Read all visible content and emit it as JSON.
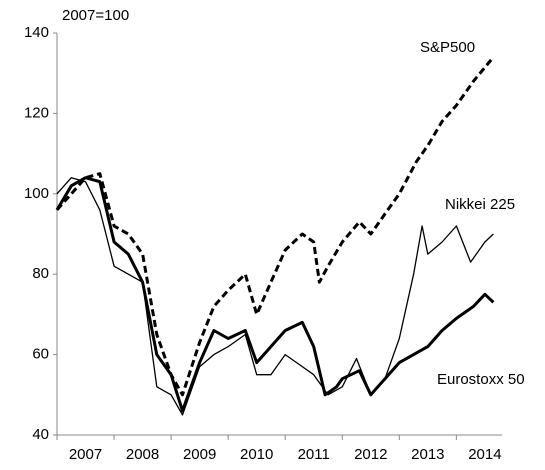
{
  "chart_data": {
    "type": "line",
    "y_label": "2007=100",
    "xlim": [
      2007,
      2014.8
    ],
    "xticks": [
      2007,
      2008,
      2009,
      2010,
      2011,
      2012,
      2013,
      2014
    ],
    "ylim": [
      40,
      140
    ],
    "yticks": [
      40,
      60,
      80,
      100,
      120,
      140
    ],
    "series": [
      {
        "name": "S&P500",
        "color": "#000000",
        "line_style": "dashed",
        "line_width": 3,
        "x": [
          2007,
          2007.25,
          2007.5,
          2007.75,
          2008,
          2008.25,
          2008.5,
          2008.75,
          2009,
          2009.2,
          2009.5,
          2009.75,
          2010,
          2010.3,
          2010.5,
          2010.75,
          2011,
          2011.3,
          2011.5,
          2011.6,
          2011.75,
          2012,
          2012.3,
          2012.5,
          2012.75,
          2013,
          2013.3,
          2013.5,
          2013.75,
          2014,
          2014.3,
          2014.65
        ],
        "values": [
          96,
          100,
          104,
          105,
          92,
          90,
          85,
          65,
          55,
          50,
          63,
          72,
          76,
          80,
          70,
          78,
          86,
          90,
          88,
          78,
          82,
          88,
          93,
          90,
          95,
          100,
          108,
          112,
          118,
          122,
          128,
          134
        ]
      },
      {
        "name": "Nikkei 225",
        "color": "#000000",
        "line_style": "solid",
        "line_width": 1.3,
        "x": [
          2007,
          2007.25,
          2007.5,
          2007.75,
          2008,
          2008.25,
          2008.5,
          2008.75,
          2009,
          2009.2,
          2009.5,
          2009.75,
          2010,
          2010.3,
          2010.5,
          2010.75,
          2011,
          2011.2,
          2011.5,
          2011.75,
          2012,
          2012.25,
          2012.5,
          2012.75,
          2013,
          2013.25,
          2013.4,
          2013.5,
          2013.75,
          2014,
          2014.25,
          2014.5,
          2014.65
        ],
        "values": [
          100,
          104,
          103,
          96,
          82,
          80,
          78,
          52,
          50,
          45,
          57,
          60,
          62,
          65,
          55,
          55,
          60,
          58,
          55,
          50,
          52,
          59,
          50,
          54,
          64,
          80,
          92,
          85,
          88,
          92,
          83,
          88,
          90
        ]
      },
      {
        "name": "Eurostoxx 50",
        "color": "#000000",
        "line_style": "solid",
        "line_width": 3,
        "x": [
          2007,
          2007.25,
          2007.5,
          2007.75,
          2008,
          2008.25,
          2008.5,
          2008.75,
          2009,
          2009.2,
          2009.5,
          2009.75,
          2010,
          2010.3,
          2010.5,
          2010.75,
          2011,
          2011.3,
          2011.5,
          2011.7,
          2011.9,
          2012,
          2012.3,
          2012.5,
          2012.75,
          2013,
          2013.25,
          2013.5,
          2013.75,
          2014,
          2014.3,
          2014.5,
          2014.65
        ],
        "values": [
          96,
          102,
          104,
          103,
          88,
          85,
          78,
          60,
          55,
          46,
          58,
          66,
          64,
          66,
          58,
          62,
          66,
          68,
          62,
          50,
          52,
          54,
          56,
          50,
          54,
          58,
          60,
          62,
          66,
          69,
          72,
          75,
          73
        ]
      }
    ]
  }
}
